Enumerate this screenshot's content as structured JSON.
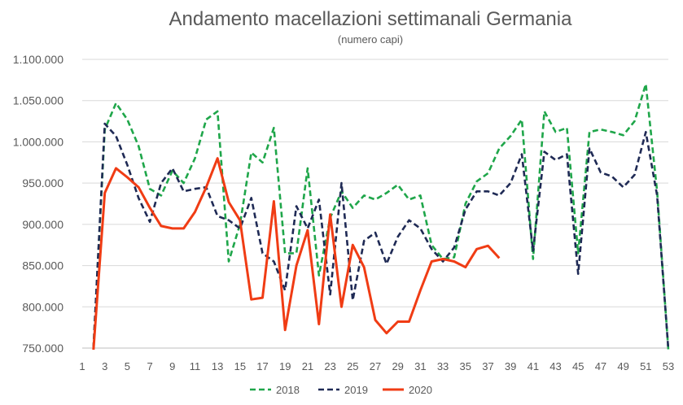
{
  "chart_data": {
    "type": "line",
    "title": "Andamento macellazioni settimanali Germania",
    "subtitle": "(numero capi)",
    "xlabel": "",
    "ylabel": "",
    "ylim": [
      750000,
      1100000
    ],
    "yticks": [
      750000,
      800000,
      850000,
      900000,
      950000,
      1000000,
      1050000,
      1100000
    ],
    "ytick_labels": [
      "750.000",
      "800.000",
      "850.000",
      "900.000",
      "950.000",
      "1.000.000",
      "1.050.000",
      "1.100.000"
    ],
    "xlim": [
      1,
      53
    ],
    "xticks": [
      1,
      3,
      5,
      7,
      9,
      11,
      13,
      15,
      17,
      19,
      21,
      23,
      25,
      27,
      29,
      31,
      33,
      35,
      37,
      39,
      41,
      43,
      45,
      47,
      49,
      51,
      53
    ],
    "xtick_labels": [
      "1",
      "3",
      "5",
      "7",
      "9",
      "11",
      "13",
      "15",
      "17",
      "19",
      "21",
      "23",
      "25",
      "27",
      "29",
      "31",
      "33",
      "35",
      "37",
      "39",
      "41",
      "43",
      "45",
      "47",
      "49",
      "51",
      "53"
    ],
    "grid": true,
    "legend_position": "bottom",
    "series": [
      {
        "name": "2018",
        "color": "#1fa64a",
        "dash": "dashed",
        "x": [
          2,
          3,
          4,
          5,
          6,
          7,
          8,
          9,
          10,
          11,
          12,
          13,
          14,
          15,
          16,
          17,
          18,
          19,
          20,
          21,
          22,
          23,
          24,
          25,
          26,
          27,
          28,
          29,
          30,
          31,
          32,
          33,
          34,
          35,
          36,
          37,
          38,
          39,
          40,
          41,
          42,
          43,
          44,
          45,
          46,
          47,
          48,
          49,
          50,
          51,
          52,
          53
        ],
        "y": [
          750000,
          1015000,
          1047000,
          1027000,
          995000,
          943000,
          935000,
          965000,
          950000,
          980000,
          1027000,
          1037000,
          855000,
          900000,
          987000,
          975000,
          1017000,
          865000,
          865000,
          968000,
          838000,
          908000,
          940000,
          920000,
          935000,
          930000,
          938000,
          948000,
          930000,
          935000,
          875000,
          858000,
          860000,
          925000,
          952000,
          962000,
          992000,
          1007000,
          1027000,
          858000,
          1037000,
          1012000,
          1017000,
          865000,
          1012000,
          1015000,
          1012000,
          1008000,
          1025000,
          1070000,
          940000,
          748000
        ]
      },
      {
        "name": "2019",
        "color": "#1f2a55",
        "dash": "dashed",
        "x": [
          2,
          3,
          4,
          5,
          6,
          7,
          8,
          9,
          10,
          11,
          12,
          13,
          14,
          15,
          16,
          17,
          18,
          19,
          20,
          21,
          22,
          23,
          24,
          25,
          26,
          27,
          28,
          29,
          30,
          31,
          32,
          33,
          34,
          35,
          36,
          37,
          38,
          39,
          40,
          41,
          42,
          43,
          44,
          45,
          46,
          47,
          48,
          49,
          50,
          51,
          52,
          53
        ],
        "y": [
          750000,
          1022000,
          1007000,
          972000,
          932000,
          903000,
          950000,
          968000,
          940000,
          943000,
          945000,
          910000,
          905000,
          895000,
          932000,
          865000,
          855000,
          820000,
          922000,
          895000,
          930000,
          815000,
          950000,
          808000,
          880000,
          890000,
          852000,
          885000,
          905000,
          895000,
          870000,
          855000,
          872000,
          918000,
          940000,
          940000,
          935000,
          950000,
          985000,
          868000,
          988000,
          978000,
          985000,
          840000,
          992000,
          963000,
          958000,
          945000,
          960000,
          1012000,
          935000,
          748000
        ]
      },
      {
        "name": "2020",
        "color": "#f03c14",
        "dash": "solid",
        "x": [
          2,
          3,
          4,
          5,
          6,
          7,
          8,
          9,
          10,
          11,
          12,
          13,
          14,
          15,
          16,
          17,
          18,
          19,
          20,
          21,
          22,
          23,
          24,
          25,
          26,
          27,
          28,
          29,
          30,
          31,
          32,
          33,
          34,
          35,
          36,
          37,
          38
        ],
        "y": [
          748000,
          938000,
          968000,
          957000,
          945000,
          920000,
          898000,
          895000,
          895000,
          915000,
          945000,
          980000,
          927000,
          905000,
          809000,
          811000,
          928000,
          772000,
          850000,
          893000,
          779000,
          912000,
          800000,
          875000,
          848000,
          784000,
          768000,
          782000,
          782000,
          820000,
          855000,
          858000,
          855000,
          848000,
          870000,
          874000,
          859000
        ]
      }
    ]
  }
}
